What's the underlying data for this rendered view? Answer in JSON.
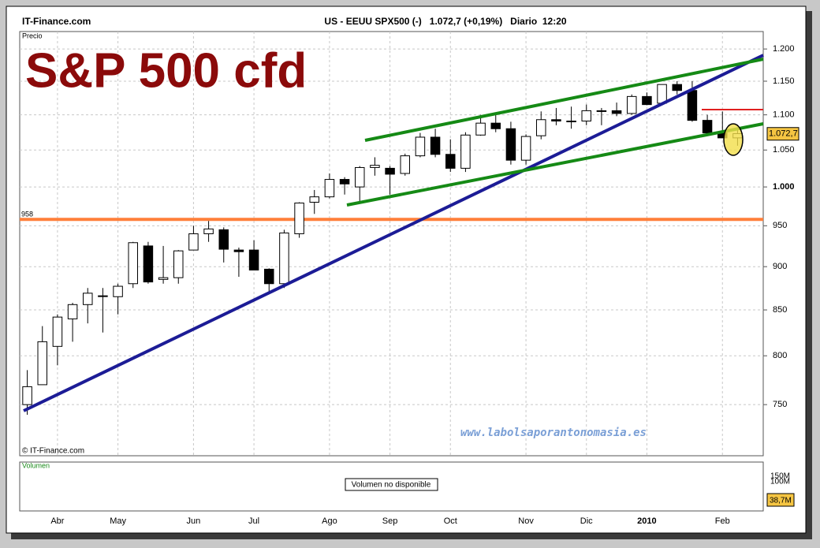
{
  "header": {
    "site": "IT-Finance.com",
    "quote": "US - EEUU SPX500 (-)   1.072,7 (+0,19%)   Diario  12:20"
  },
  "chart_data": {
    "type": "candlestick",
    "title": "S&P 500 cfd",
    "panel_label": "Precio",
    "watermark": "www.labolsaporantonomasia.es",
    "copyright": "© IT-Finance.com",
    "categories": [
      null,
      null,
      "Abr",
      null,
      null,
      null,
      "May",
      null,
      null,
      null,
      null,
      "Jun",
      null,
      null,
      null,
      "Jul",
      null,
      null,
      null,
      null,
      "Ago",
      null,
      null,
      null,
      "Sep",
      null,
      null,
      null,
      "Oct",
      null,
      null,
      null,
      null,
      "Nov",
      null,
      null,
      null,
      "Dic",
      null,
      null,
      null,
      "2010",
      null,
      null,
      null,
      null,
      "Feb",
      null
    ],
    "open": [
      750,
      770,
      810,
      840,
      856,
      866,
      865,
      880,
      925,
      885,
      887,
      920,
      940,
      945,
      920,
      920,
      897,
      880,
      940,
      980,
      987,
      1010,
      1000,
      1026,
      1025,
      1018,
      1042,
      1068,
      1044,
      1025,
      1071,
      1088,
      1080,
      1036,
      1070,
      1093,
      1091,
      1091,
      1106,
      1106,
      1102,
      1127,
      1117,
      1145,
      1136,
      1092,
      1074,
      1067
    ],
    "high": [
      785,
      832,
      845,
      858,
      875,
      875,
      880,
      930,
      930,
      925,
      920,
      950,
      956,
      948,
      923,
      932,
      898,
      945,
      980,
      996,
      1018,
      1013,
      1028,
      1040,
      1028,
      1045,
      1074,
      1080,
      1065,
      1075,
      1100,
      1101,
      1090,
      1072,
      1105,
      1110,
      1112,
      1115,
      1110,
      1118,
      1130,
      1133,
      1145,
      1150,
      1150,
      1100,
      1105,
      1080
    ],
    "low": [
      740,
      770,
      790,
      815,
      835,
      825,
      845,
      875,
      880,
      880,
      880,
      920,
      930,
      905,
      888,
      896,
      870,
      875,
      935,
      965,
      985,
      990,
      980,
      1015,
      990,
      1015,
      1040,
      1040,
      1020,
      1020,
      1070,
      1075,
      1030,
      1030,
      1065,
      1085,
      1080,
      1085,
      1085,
      1098,
      1100,
      1114,
      1115,
      1130,
      1090,
      1072,
      1067,
      1056
    ],
    "close": [
      768,
      815,
      842,
      856,
      869,
      866,
      877,
      929,
      882,
      887,
      919,
      940,
      946,
      921,
      918,
      896,
      880,
      941,
      979,
      987,
      1010,
      1004,
      1026,
      1029,
      1017,
      1042,
      1068,
      1044,
      1025,
      1071,
      1088,
      1080,
      1036,
      1069,
      1093,
      1091,
      1091,
      1106,
      1106,
      1102,
      1127,
      1115,
      1145,
      1136,
      1092,
      1074,
      1067,
      1073
    ],
    "yscale": "log",
    "ylim": [
      701,
      1228
    ],
    "yticks": [
      {
        "value": 1200,
        "label": "1.200"
      },
      {
        "value": 1150,
        "label": "1.150"
      },
      {
        "value": 1100,
        "label": "1.100"
      },
      {
        "value": 1050,
        "label": "1.050"
      },
      {
        "value": 1000,
        "label": "1.000"
      },
      950,
      900,
      850,
      800,
      750
    ],
    "grid": true,
    "up_color": "#ffffff",
    "down_color": "#000000",
    "level": {
      "value": 958,
      "color": "#ff7f3a"
    },
    "last_price": {
      "value": 1072.7,
      "label": "1.072,7"
    }
  },
  "volume": {
    "title": "Volumen",
    "message": "Volumen no disponible",
    "labels": [
      "150M",
      "100M"
    ],
    "last_label": "38,7M"
  }
}
